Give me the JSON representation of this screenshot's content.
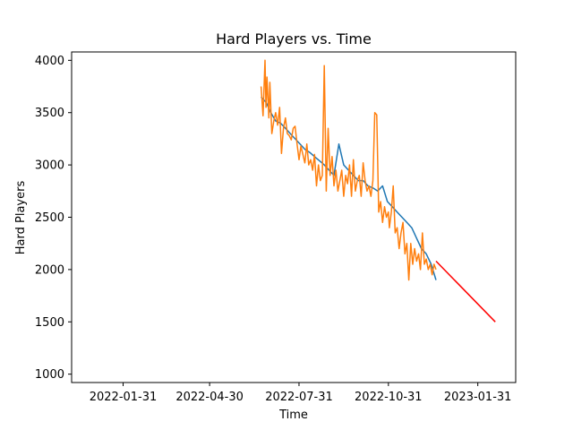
{
  "chart_data": {
    "type": "line",
    "title": "Hard Players vs. Time",
    "xlabel": "Time",
    "ylabel": "Hard Players",
    "xlim": [
      "2021-12-09",
      "2023-03-11"
    ],
    "ylim": [
      920,
      4080
    ],
    "x_ticks": [
      "2022-01-31",
      "2022-04-30",
      "2022-07-31",
      "2022-10-31",
      "2023-01-31"
    ],
    "y_ticks": [
      1000,
      1500,
      2000,
      2500,
      3000,
      3500,
      4000
    ],
    "grid": false,
    "legend": "none",
    "series": [
      {
        "color": "#1f77b4",
        "x": [
          "2022-06-22",
          "2022-06-27",
          "2022-07-02",
          "2022-07-07",
          "2022-07-12",
          "2022-07-17",
          "2022-07-22",
          "2022-07-27",
          "2022-08-01",
          "2022-08-06",
          "2022-08-11",
          "2022-08-16",
          "2022-08-21",
          "2022-08-26",
          "2022-08-31",
          "2022-09-05",
          "2022-09-10",
          "2022-09-15",
          "2022-09-20",
          "2022-09-25",
          "2022-09-30",
          "2022-10-05",
          "2022-10-10",
          "2022-10-15",
          "2022-10-20",
          "2022-10-25",
          "2022-10-30",
          "2022-11-04",
          "2022-11-09",
          "2022-11-14",
          "2022-11-19",
          "2022-11-24",
          "2022-11-29",
          "2022-12-04",
          "2022-12-09",
          "2022-12-14",
          "2022-12-19"
        ],
        "y": [
          3650,
          3600,
          3500,
          3420,
          3400,
          3350,
          3300,
          3250,
          3200,
          3150,
          3120,
          3080,
          3040,
          3000,
          2950,
          2900,
          3200,
          3000,
          2950,
          2900,
          2850,
          2850,
          2800,
          2780,
          2750,
          2800,
          2650,
          2600,
          2550,
          2500,
          2450,
          2400,
          2300,
          2200,
          2150,
          2050,
          1900
        ]
      },
      {
        "color": "#ff7f0e",
        "x": [
          "2022-06-22",
          "2022-06-24",
          "2022-06-26",
          "2022-06-27",
          "2022-06-28",
          "2022-06-30",
          "2022-07-01",
          "2022-07-03",
          "2022-07-05",
          "2022-07-07",
          "2022-07-09",
          "2022-07-11",
          "2022-07-13",
          "2022-07-15",
          "2022-07-17",
          "2022-07-19",
          "2022-07-21",
          "2022-07-23",
          "2022-07-25",
          "2022-07-27",
          "2022-07-29",
          "2022-07-31",
          "2022-08-02",
          "2022-08-04",
          "2022-08-06",
          "2022-08-08",
          "2022-08-10",
          "2022-08-12",
          "2022-08-14",
          "2022-08-16",
          "2022-08-18",
          "2022-08-20",
          "2022-08-22",
          "2022-08-24",
          "2022-08-26",
          "2022-08-28",
          "2022-08-30",
          "2022-09-01",
          "2022-09-03",
          "2022-09-05",
          "2022-09-07",
          "2022-09-09",
          "2022-09-11",
          "2022-09-13",
          "2022-09-15",
          "2022-09-17",
          "2022-09-19",
          "2022-09-21",
          "2022-09-23",
          "2022-09-25",
          "2022-09-27",
          "2022-09-29",
          "2022-10-01",
          "2022-10-03",
          "2022-10-05",
          "2022-10-07",
          "2022-10-09",
          "2022-10-11",
          "2022-10-13",
          "2022-10-15",
          "2022-10-17",
          "2022-10-19",
          "2022-10-21",
          "2022-10-23",
          "2022-10-25",
          "2022-10-27",
          "2022-10-29",
          "2022-10-31",
          "2022-11-01",
          "2022-11-03",
          "2022-11-05",
          "2022-11-07",
          "2022-11-09",
          "2022-11-11",
          "2022-11-13",
          "2022-11-15",
          "2022-11-17",
          "2022-11-19",
          "2022-11-21",
          "2022-11-23",
          "2022-11-25",
          "2022-11-27",
          "2022-11-29",
          "2022-12-01",
          "2022-12-03",
          "2022-12-05",
          "2022-12-07",
          "2022-12-09",
          "2022-12-11",
          "2022-12-13",
          "2022-12-15",
          "2022-12-17",
          "2022-12-19"
        ],
        "y": [
          3750,
          3470,
          4000,
          3550,
          3840,
          3450,
          3790,
          3300,
          3420,
          3500,
          3380,
          3550,
          3110,
          3350,
          3450,
          3300,
          3280,
          3240,
          3350,
          3370,
          3200,
          3050,
          3180,
          3100,
          3020,
          3200,
          3000,
          3050,
          2950,
          3100,
          2800,
          3000,
          2850,
          2900,
          3950,
          2750,
          3350,
          2900,
          3080,
          2800,
          2950,
          2750,
          2850,
          2950,
          2700,
          2900,
          2820,
          3000,
          2700,
          3050,
          2750,
          2850,
          2900,
          2700,
          3020,
          2850,
          2750,
          2800,
          2700,
          2850,
          3500,
          3480,
          2550,
          2650,
          2450,
          2600,
          2500,
          2550,
          2400,
          2550,
          2800,
          2350,
          2400,
          2200,
          2350,
          2450,
          2150,
          2250,
          1900,
          2250,
          2050,
          2200,
          2080,
          2150,
          2000,
          2350,
          2050,
          2100,
          2000,
          2050,
          1950,
          2050,
          2000
        ]
      },
      {
        "color": "#ff0000",
        "x": [
          "2022-12-19",
          "2023-02-18"
        ],
        "y": [
          2080,
          1500
        ]
      }
    ]
  }
}
